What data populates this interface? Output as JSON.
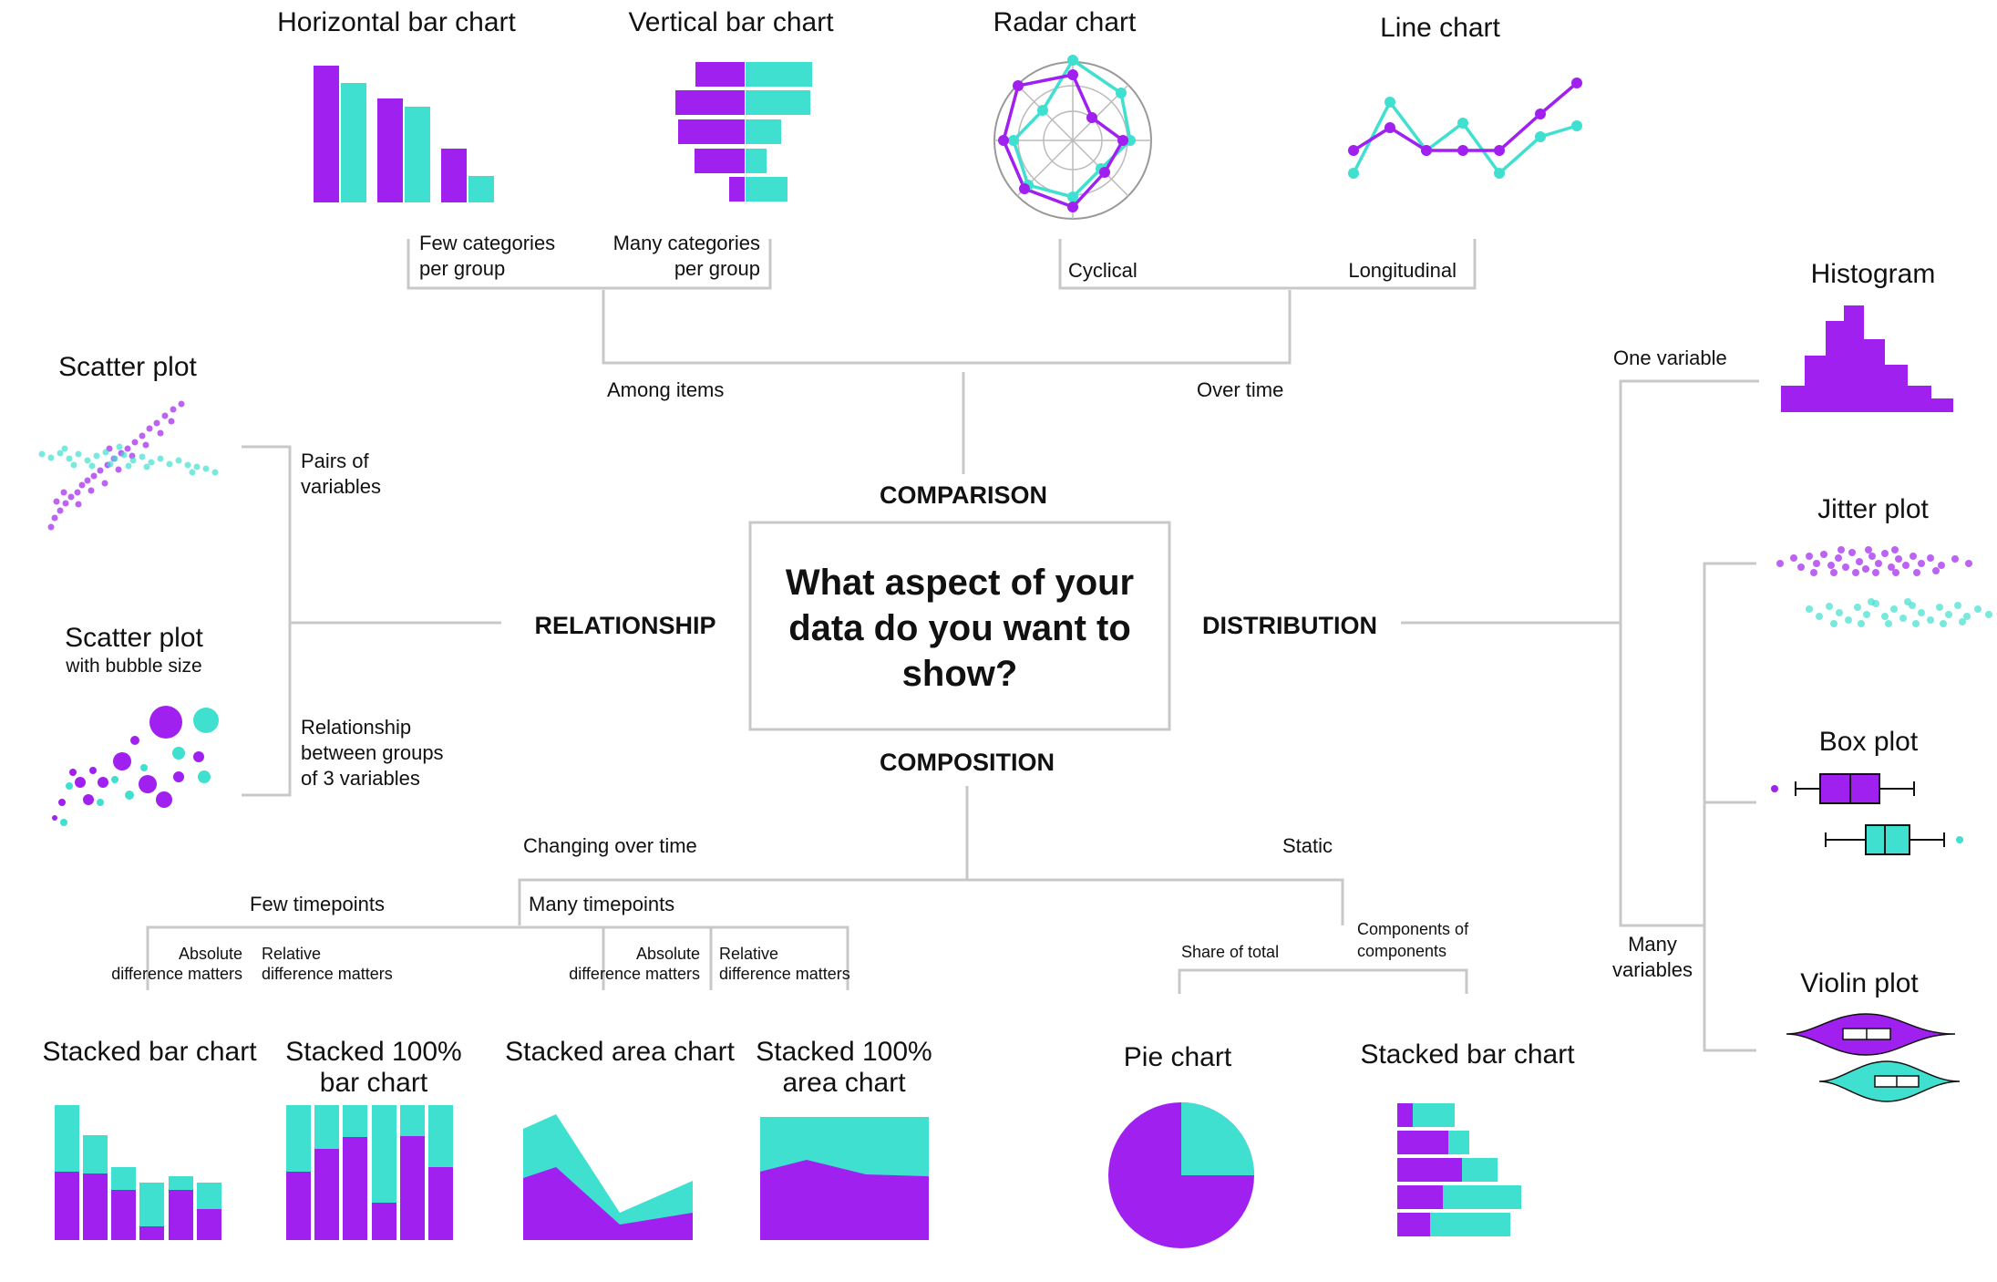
{
  "colors": {
    "purple": "#a020f0",
    "teal": "#40e0d0",
    "line": "#c8c8c8"
  },
  "center": {
    "question": [
      "What aspect of your",
      "data do you want to",
      "show?"
    ],
    "comparison": "COMPARISON",
    "relationship": "RELATIONSHIP",
    "distribution": "DISTRIBUTION",
    "composition": "COMPOSITION"
  },
  "comparison": {
    "among_items": "Among items",
    "over_time": "Over time",
    "few_categories": [
      "Few categories",
      "per group"
    ],
    "many_categories": [
      "Many categories",
      "per group"
    ],
    "cyclical": "Cyclical",
    "longitudinal": "Longitudinal",
    "charts": {
      "horizontal_bar": "Horizontal bar chart",
      "vertical_bar": "Vertical bar chart",
      "radar": "Radar chart",
      "line": "Line chart"
    }
  },
  "relationship": {
    "pairs": [
      "Pairs of",
      "variables"
    ],
    "groups": [
      "Relationship",
      "between groups",
      "of 3 variables"
    ],
    "charts": {
      "scatter": "Scatter plot",
      "bubble": "Scatter plot",
      "bubble_sub": "with bubble size"
    }
  },
  "distribution": {
    "one_variable": "One variable",
    "many_variables": [
      "Many",
      "variables"
    ],
    "charts": {
      "histogram": "Histogram",
      "jitter": "Jitter plot",
      "box": "Box plot",
      "violin": "Violin plot"
    }
  },
  "composition": {
    "changing": "Changing over time",
    "static": "Static",
    "few_timepoints": "Few timepoints",
    "many_timepoints": "Many timepoints",
    "absolute": [
      "Absolute",
      "difference matters"
    ],
    "relative": [
      "Relative",
      "difference matters"
    ],
    "share_of_total": "Share of total",
    "components": [
      "Components of",
      "components"
    ],
    "charts": {
      "stacked_bar": "Stacked bar chart",
      "stacked_100_bar": [
        "Stacked 100%",
        "bar chart"
      ],
      "stacked_area": "Stacked area chart",
      "stacked_100_area": [
        "Stacked 100%",
        "area chart"
      ],
      "pie": "Pie chart",
      "stacked_bar_static": "Stacked bar chart"
    }
  }
}
